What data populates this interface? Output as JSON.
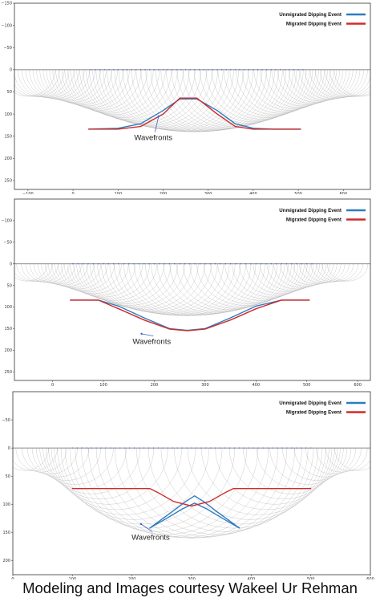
{
  "caption": "Modeling and Images courtesy Wakeel Ur Rehman",
  "colors": {
    "unmigrated": "#2e7bbf",
    "migrated": "#d02b2b",
    "wavefront": "#9e9e9e",
    "receivers": "#3a5fd0",
    "surface": "#666666"
  },
  "chart_data": [
    {
      "type": "line",
      "xlim": [
        -130,
        660
      ],
      "ylim": [
        -150,
        270
      ],
      "y_inverted": true,
      "xticks": [
        -100,
        0,
        100,
        200,
        300,
        400,
        500,
        600
      ],
      "yticks": [
        -150,
        -100,
        -50,
        0,
        50,
        100,
        150,
        200,
        250
      ],
      "legend": [
        "Unmigrated Dipping Event",
        "Migrated Dipping Event"
      ],
      "legend_position": "top-right",
      "annotation": {
        "text": "Wavefronts",
        "x": 150,
        "y": 155,
        "arrow_to_x": 190,
        "arrow_to_y": 105
      },
      "surface_y": 0,
      "receivers": {
        "x_start": 40,
        "x_end": 510,
        "step": 10,
        "y": 0
      },
      "wavefronts": {
        "x_start": -100,
        "x_end": 640,
        "step": 10,
        "radius_min": 60,
        "radius_max": 140
      },
      "series": [
        {
          "name": "Unmigrated Dipping Event",
          "x": [
            35,
            100,
            150,
            200,
            237,
            275,
            320,
            360,
            400,
            445,
            505
          ],
          "y": [
            134,
            132,
            122,
            92,
            66,
            66,
            92,
            122,
            132,
            134,
            134
          ]
        },
        {
          "name": "Migrated Dipping Event",
          "x": [
            35,
            100,
            150,
            200,
            237,
            275,
            320,
            360,
            400,
            445,
            505
          ],
          "y": [
            134,
            134,
            128,
            100,
            64,
            64,
            100,
            128,
            134,
            134,
            134
          ]
        }
      ]
    },
    {
      "type": "line",
      "xlim": [
        -75,
        625
      ],
      "ylim": [
        -150,
        270
      ],
      "y_inverted": true,
      "xticks": [
        0,
        100,
        200,
        300,
        400,
        500,
        600
      ],
      "yticks": [
        -100,
        -50,
        0,
        50,
        100,
        150,
        200,
        250
      ],
      "legend": [
        "Unmigrated Dipping Event",
        "Migrated Dipping Event"
      ],
      "legend_position": "top-right",
      "annotation": {
        "text": "Wavefronts",
        "x": 170,
        "y": 182,
        "arrow_to_x": 175,
        "arrow_to_y": 162
      },
      "surface_y": 0,
      "receivers": {
        "x_start": 40,
        "x_end": 510,
        "step": 10,
        "y": 0
      },
      "wavefronts": {
        "x_start": -50,
        "x_end": 580,
        "step": 10,
        "radius_min": 40,
        "radius_max": 120
      },
      "series": [
        {
          "name": "Unmigrated Dipping Event",
          "x": [
            35,
            90,
            130,
            180,
            230,
            265,
            300,
            350,
            400,
            450,
            505
          ],
          "y": [
            84,
            84,
            98,
            125,
            150,
            154,
            150,
            125,
            98,
            84,
            84
          ]
        },
        {
          "name": "Migrated Dipping Event",
          "x": [
            35,
            90,
            130,
            180,
            230,
            265,
            300,
            350,
            400,
            450,
            505
          ],
          "y": [
            84,
            84,
            104,
            130,
            151,
            155,
            151,
            130,
            104,
            84,
            84
          ]
        }
      ]
    },
    {
      "type": "line",
      "xlim": [
        0,
        600
      ],
      "ylim": [
        -100,
        225
      ],
      "y_inverted": true,
      "xticks": [
        0,
        100,
        200,
        300,
        400,
        500,
        600
      ],
      "yticks": [
        -50,
        0,
        50,
        100,
        150,
        200
      ],
      "legend": [
        "Unmigrated Dipping Event",
        "Migrated Dipping Event"
      ],
      "legend_position": "top-right",
      "annotation": {
        "text": "Wavefronts",
        "x": 210,
        "y": 160,
        "arrow_to_x": 215,
        "arrow_to_y": 135
      },
      "surface_y": 0,
      "receivers": {
        "x_start": 100,
        "x_end": 500,
        "step": 8,
        "y": 0
      },
      "wavefronts": {
        "x_start": 20,
        "x_end": 580,
        "step": 14,
        "radius_min": 40,
        "radius_max": 160
      },
      "series": [
        {
          "name": "Unmigrated Dipping Event",
          "x": [
            230,
            255,
            285,
            305,
            325,
            355,
            380
          ],
          "y": [
            142,
            127,
            108,
            98,
            108,
            127,
            142
          ]
        },
        {
          "name": "Unmigrated Dipping Event",
          "x": [
            230,
            265,
            290,
            305,
            320,
            345,
            380
          ],
          "y": [
            142,
            115,
            95,
            85,
            95,
            115,
            142
          ]
        },
        {
          "name": "Migrated Dipping Event",
          "x": [
            100,
            170,
            230,
            245,
            270,
            300,
            330,
            355,
            370,
            430,
            500
          ],
          "y": [
            72,
            72,
            72,
            80,
            95,
            103,
            95,
            80,
            72,
            72,
            72
          ]
        }
      ]
    }
  ]
}
